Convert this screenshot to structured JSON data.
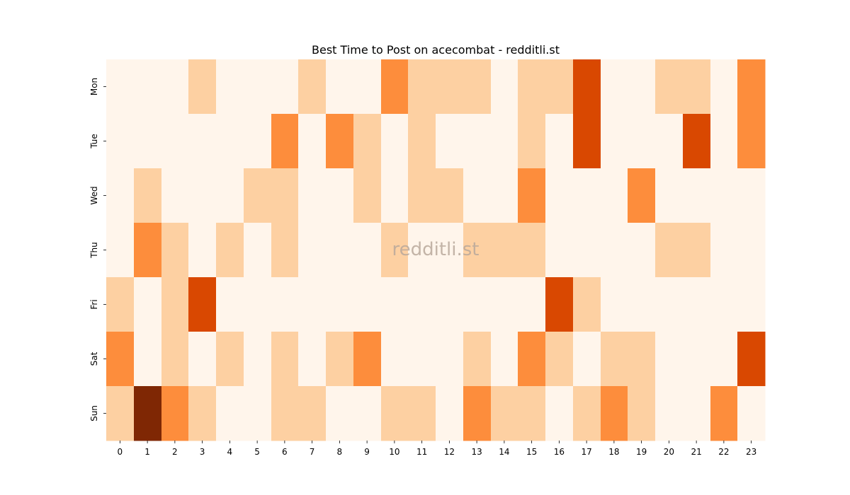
{
  "chart_data": {
    "type": "heatmap",
    "title": "Best Time to Post on acecombat - redditli.st",
    "watermark": "redditli.st",
    "x_categories": [
      "0",
      "1",
      "2",
      "3",
      "4",
      "5",
      "6",
      "7",
      "8",
      "9",
      "10",
      "11",
      "12",
      "13",
      "14",
      "15",
      "16",
      "17",
      "18",
      "19",
      "20",
      "21",
      "22",
      "23"
    ],
    "y_categories": [
      "Mon",
      "Tue",
      "Wed",
      "Thu",
      "Fri",
      "Sat",
      "Sun"
    ],
    "colorscale": [
      "#fff5eb",
      "#fdd0a2",
      "#fd8d3c",
      "#d94801",
      "#7f2704"
    ],
    "values": [
      [
        0,
        0,
        0,
        1,
        0,
        0,
        0,
        1,
        0,
        0,
        2,
        1,
        1,
        1,
        0,
        1,
        1,
        3,
        0,
        0,
        1,
        1,
        0,
        2
      ],
      [
        0,
        0,
        0,
        0,
        0,
        0,
        2,
        0,
        2,
        1,
        0,
        1,
        0,
        0,
        0,
        1,
        0,
        3,
        0,
        0,
        0,
        3,
        0,
        2
      ],
      [
        0,
        1,
        0,
        0,
        0,
        1,
        1,
        0,
        0,
        1,
        0,
        1,
        1,
        0,
        0,
        2,
        0,
        0,
        0,
        2,
        0,
        0,
        0,
        0
      ],
      [
        0,
        2,
        1,
        0,
        1,
        0,
        1,
        0,
        0,
        0,
        1,
        0,
        0,
        1,
        1,
        1,
        0,
        0,
        0,
        0,
        1,
        1,
        0,
        0
      ],
      [
        1,
        0,
        1,
        3,
        0,
        0,
        0,
        0,
        0,
        0,
        0,
        0,
        0,
        0,
        0,
        0,
        3,
        1,
        0,
        0,
        0,
        0,
        0,
        0
      ],
      [
        2,
        0,
        1,
        0,
        1,
        0,
        1,
        0,
        1,
        2,
        0,
        0,
        0,
        1,
        0,
        2,
        1,
        0,
        1,
        1,
        0,
        0,
        0,
        3
      ],
      [
        1,
        4,
        2,
        1,
        0,
        0,
        1,
        1,
        0,
        0,
        1,
        1,
        0,
        2,
        1,
        1,
        0,
        1,
        2,
        1,
        0,
        0,
        2,
        0
      ]
    ],
    "legend": "none",
    "grid": false
  }
}
